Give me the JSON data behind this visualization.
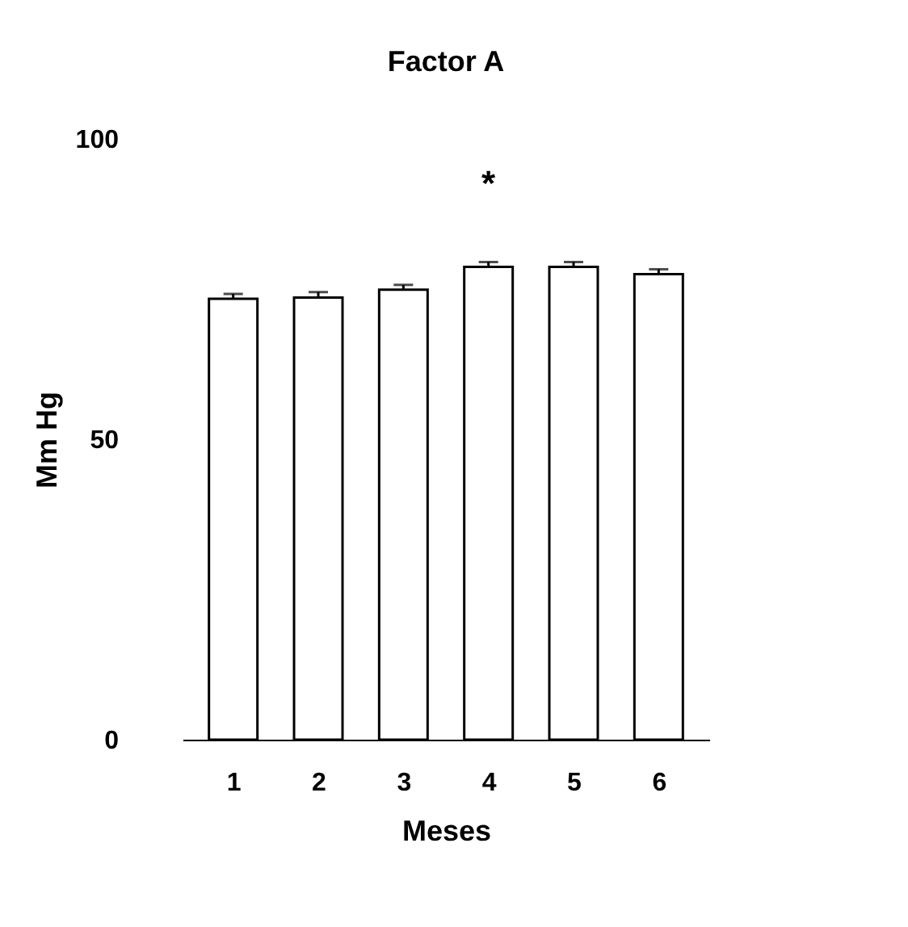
{
  "chart_data": {
    "type": "bar",
    "title": "Factor A",
    "xlabel": "Meses",
    "ylabel": "Mm Hg",
    "categories": [
      "1",
      "2",
      "3",
      "4",
      "5",
      "6"
    ],
    "values": [
      73.4,
      73.6,
      74.9,
      78.7,
      78.7,
      77.5
    ],
    "errors": [
      0.8,
      0.9,
      0.8,
      0.8,
      0.8,
      0.8
    ],
    "color": "#ffffff",
    "ylim": [
      0,
      100
    ],
    "yticks": [
      0,
      50,
      100
    ],
    "grid": false,
    "annotations": [
      "*"
    ]
  }
}
